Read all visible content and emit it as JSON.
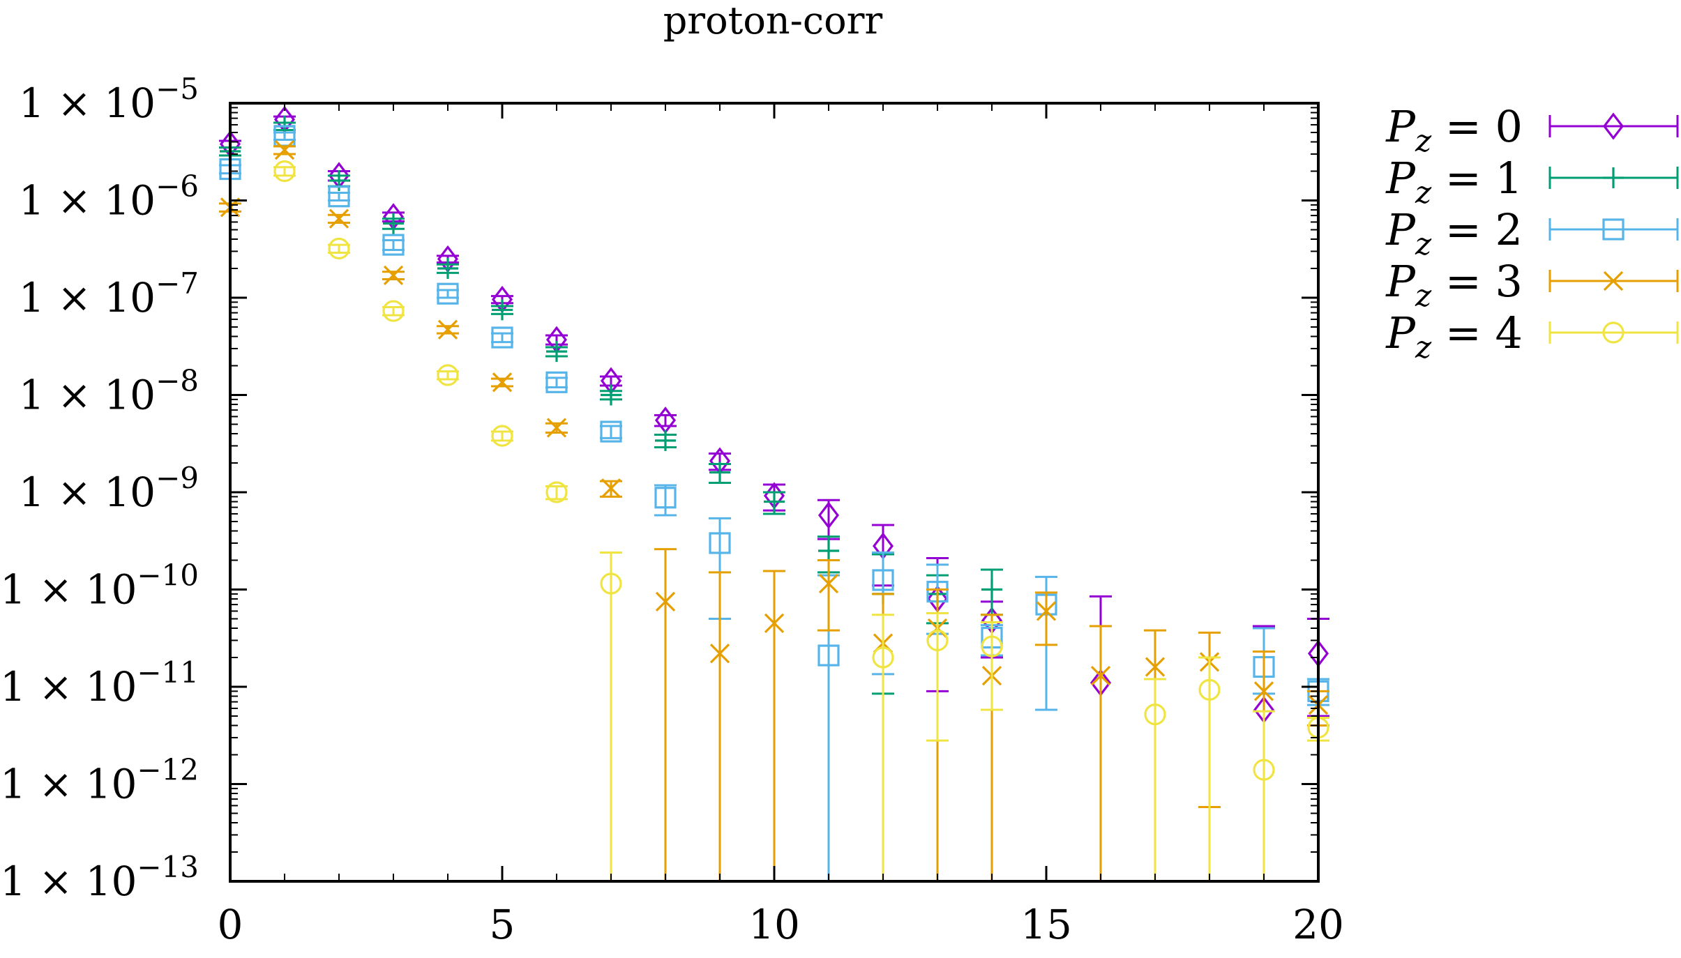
{
  "chart_data": {
    "type": "scatter",
    "title": "proton-corr",
    "xlabel": "",
    "ylabel": "",
    "xlim": [
      0,
      20
    ],
    "ylim": [
      1e-13,
      1e-05
    ],
    "yscale": "log",
    "legend_position": "outside-right",
    "x_ticks": [
      {
        "value": 0,
        "label": "0"
      },
      {
        "value": 5,
        "label": "5"
      },
      {
        "value": 10,
        "label": "10"
      },
      {
        "value": 15,
        "label": "15"
      },
      {
        "value": 20,
        "label": "20"
      }
    ],
    "y_ticks": [
      {
        "value": 1e-05,
        "label": "1 × 10",
        "exp": "−5"
      },
      {
        "value": 1e-06,
        "label": "1 × 10",
        "exp": "−6"
      },
      {
        "value": 1e-07,
        "label": "1 × 10",
        "exp": "−7"
      },
      {
        "value": 1e-08,
        "label": "1 × 10",
        "exp": "−8"
      },
      {
        "value": 1e-09,
        "label": "1 × 10",
        "exp": "−9"
      },
      {
        "value": 1e-10,
        "label": "1 × 10",
        "exp": "−10"
      },
      {
        "value": 1e-11,
        "label": "1 × 10",
        "exp": "−11"
      },
      {
        "value": 1e-12,
        "label": "1 × 10",
        "exp": "−12"
      },
      {
        "value": 1e-13,
        "label": "1 × 10",
        "exp": "−13"
      }
    ],
    "series": [
      {
        "name": "P_z = 0",
        "legend_var": "P",
        "legend_sub": "z",
        "legend_rest": " = 0",
        "color": "#9400d3",
        "marker": "diamond",
        "points": [
          {
            "x": 0,
            "y": 3.8e-06,
            "lo": 3.5e-06,
            "hi": 4.1e-06
          },
          {
            "x": 1,
            "y": 6.8e-06,
            "lo": 6.3e-06,
            "hi": 7.3e-06
          },
          {
            "x": 2,
            "y": 1.8e-06,
            "lo": 1.6e-06,
            "hi": 2e-06
          },
          {
            "x": 3,
            "y": 6.8e-07,
            "lo": 6.1e-07,
            "hi": 7.5e-07
          },
          {
            "x": 4,
            "y": 2.5e-07,
            "lo": 2.3e-07,
            "hi": 2.7e-07
          },
          {
            "x": 5,
            "y": 9.6e-08,
            "lo": 8.8e-08,
            "hi": 1.04e-07
          },
          {
            "x": 6,
            "y": 3.7e-08,
            "lo": 3.3e-08,
            "hi": 4.1e-08
          },
          {
            "x": 7,
            "y": 1.4e-08,
            "lo": 1.25e-08,
            "hi": 1.55e-08
          },
          {
            "x": 8,
            "y": 5.5e-09,
            "lo": 4.8e-09,
            "hi": 6.2e-09
          },
          {
            "x": 9,
            "y": 2.1e-09,
            "lo": 1.7e-09,
            "hi": 2.5e-09
          },
          {
            "x": 10,
            "y": 9.2e-10,
            "lo": 6.5e-10,
            "hi": 1.2e-09
          },
          {
            "x": 11,
            "y": 5.8e-10,
            "lo": 3.3e-10,
            "hi": 8.3e-10
          },
          {
            "x": 12,
            "y": 2.8e-10,
            "lo": 1.1e-10,
            "hi": 4.6e-10
          },
          {
            "x": 13,
            "y": 8e-11,
            "lo": 9e-12,
            "hi": 2.1e-10
          },
          {
            "x": 14,
            "y": 4.8e-11,
            "lo": 2e-11,
            "hi": 7.5e-11
          },
          {
            "x": 16,
            "y": 1.1e-11,
            "lo": 1e-13,
            "hi": 8.5e-11
          },
          {
            "x": 19,
            "y": 5.8e-12,
            "lo": 1e-13,
            "hi": 4.2e-11
          },
          {
            "x": 20,
            "y": 2.2e-11,
            "lo": 5e-12,
            "hi": 5e-11
          }
        ]
      },
      {
        "name": "P_z = 1",
        "legend_var": "P",
        "legend_sub": "z",
        "legend_rest": " = 1",
        "color": "#009e73",
        "marker": "plus",
        "points": [
          {
            "x": 0,
            "y": 3.2e-06,
            "lo": 2.9e-06,
            "hi": 3.5e-06
          },
          {
            "x": 1,
            "y": 5.8e-06,
            "lo": 5.3e-06,
            "hi": 6.3e-06
          },
          {
            "x": 2,
            "y": 1.6e-06,
            "lo": 1.4e-06,
            "hi": 1.8e-06
          },
          {
            "x": 3,
            "y": 5.8e-07,
            "lo": 5.1e-07,
            "hi": 6.5e-07
          },
          {
            "x": 4,
            "y": 2e-07,
            "lo": 1.8e-07,
            "hi": 2.2e-07
          },
          {
            "x": 5,
            "y": 7.5e-08,
            "lo": 6.8e-08,
            "hi": 8.2e-08
          },
          {
            "x": 6,
            "y": 2.8e-08,
            "lo": 2.5e-08,
            "hi": 3.1e-08
          },
          {
            "x": 7,
            "y": 1e-08,
            "lo": 9e-09,
            "hi": 1.1e-08
          },
          {
            "x": 8,
            "y": 3.4e-09,
            "lo": 2.9e-09,
            "hi": 3.9e-09
          },
          {
            "x": 9,
            "y": 1.6e-09,
            "lo": 1.25e-09,
            "hi": 1.95e-09
          },
          {
            "x": 10,
            "y": 8e-10,
            "lo": 6e-10,
            "hi": 1e-09
          },
          {
            "x": 11,
            "y": 2.5e-10,
            "lo": 1.5e-10,
            "hi": 3.5e-10
          },
          {
            "x": 12,
            "y": 9e-11,
            "lo": 8.5e-12,
            "hi": 2.3e-10
          },
          {
            "x": 13,
            "y": 9e-11,
            "lo": 4.5e-11,
            "hi": 1.4e-10
          },
          {
            "x": 14,
            "y": 1e-10,
            "lo": 5.5e-11,
            "hi": 1.6e-10
          }
        ]
      },
      {
        "name": "P_z = 2",
        "legend_var": "P",
        "legend_sub": "z",
        "legend_rest": " = 2",
        "color": "#56b4e9",
        "marker": "square",
        "points": [
          {
            "x": 0,
            "y": 2.1e-06,
            "lo": 1.9e-06,
            "hi": 2.3e-06
          },
          {
            "x": 1,
            "y": 4.6e-06,
            "lo": 4.2e-06,
            "hi": 5e-06
          },
          {
            "x": 2,
            "y": 1.1e-06,
            "lo": 1e-06,
            "hi": 1.2e-06
          },
          {
            "x": 3,
            "y": 3.5e-07,
            "lo": 3.1e-07,
            "hi": 3.9e-07
          },
          {
            "x": 4,
            "y": 1.1e-07,
            "lo": 1e-07,
            "hi": 1.2e-07
          },
          {
            "x": 5,
            "y": 3.9e-08,
            "lo": 3.5e-08,
            "hi": 4.3e-08
          },
          {
            "x": 6,
            "y": 1.35e-08,
            "lo": 1.2e-08,
            "hi": 1.5e-08
          },
          {
            "x": 7,
            "y": 4.2e-09,
            "lo": 3.6e-09,
            "hi": 4.8e-09
          },
          {
            "x": 8,
            "y": 8.8e-10,
            "lo": 5.8e-10,
            "hi": 1.18e-09
          },
          {
            "x": 9,
            "y": 3e-10,
            "lo": 5e-11,
            "hi": 5.4e-10
          },
          {
            "x": 11,
            "y": 2.1e-11,
            "lo": 1e-13,
            "hi": 1.4e-10
          },
          {
            "x": 12,
            "y": 1.25e-10,
            "lo": 1.35e-11,
            "hi": 2.4e-10
          },
          {
            "x": 13,
            "y": 9.5e-11,
            "lo": 3.5e-11,
            "hi": 1.8e-10
          },
          {
            "x": 14,
            "y": 3.2e-11,
            "lo": 2.1e-11,
            "hi": 4.3e-11
          },
          {
            "x": 15,
            "y": 7e-11,
            "lo": 5.8e-12,
            "hi": 1.35e-10
          },
          {
            "x": 19,
            "y": 1.6e-11,
            "lo": 8.5e-12,
            "hi": 4e-11
          },
          {
            "x": 20,
            "y": 9e-12,
            "lo": 6.5e-12,
            "hi": 1.2e-11
          }
        ]
      },
      {
        "name": "P_z = 3",
        "legend_var": "P",
        "legend_sub": "z",
        "legend_rest": " = 3",
        "color": "#e69f00",
        "marker": "cross",
        "points": [
          {
            "x": 0,
            "y": 8.5e-07,
            "lo": 7.7e-07,
            "hi": 9.3e-07
          },
          {
            "x": 1,
            "y": 3.3e-06,
            "lo": 3e-06,
            "hi": 3.6e-06
          },
          {
            "x": 2,
            "y": 6.5e-07,
            "lo": 5.9e-07,
            "hi": 7.1e-07
          },
          {
            "x": 3,
            "y": 1.7e-07,
            "lo": 1.55e-07,
            "hi": 1.85e-07
          },
          {
            "x": 4,
            "y": 4.7e-08,
            "lo": 4.3e-08,
            "hi": 5.1e-08
          },
          {
            "x": 5,
            "y": 1.35e-08,
            "lo": 1.23e-08,
            "hi": 1.47e-08
          },
          {
            "x": 6,
            "y": 4.6e-09,
            "lo": 4.1e-09,
            "hi": 5.1e-09
          },
          {
            "x": 7,
            "y": 1.1e-09,
            "lo": 9e-10,
            "hi": 1.3e-09
          },
          {
            "x": 8,
            "y": 7.5e-11,
            "lo": 1e-13,
            "hi": 2.6e-10
          },
          {
            "x": 9,
            "y": 2.2e-11,
            "lo": 1e-13,
            "hi": 1.5e-10
          },
          {
            "x": 10,
            "y": 4.5e-11,
            "lo": 1e-13,
            "hi": 1.55e-10
          },
          {
            "x": 11,
            "y": 1.15e-10,
            "lo": 3.8e-11,
            "hi": 2e-10
          },
          {
            "x": 12,
            "y": 2.8e-11,
            "lo": 1e-13,
            "hi": 9e-11
          },
          {
            "x": 13,
            "y": 4e-11,
            "lo": 1e-13,
            "hi": 1e-10
          },
          {
            "x": 14,
            "y": 1.3e-11,
            "lo": 1e-13,
            "hi": 5.5e-11
          },
          {
            "x": 15,
            "y": 6e-11,
            "lo": 2.7e-11,
            "hi": 9.3e-11
          },
          {
            "x": 16,
            "y": 1.3e-11,
            "lo": 1e-13,
            "hi": 4.2e-11
          },
          {
            "x": 17,
            "y": 1.6e-11,
            "lo": 1e-13,
            "hi": 3.8e-11
          },
          {
            "x": 18,
            "y": 1.8e-11,
            "lo": 5.8e-13,
            "hi": 3.6e-11
          },
          {
            "x": 19,
            "y": 9e-12,
            "lo": 1e-13,
            "hi": 2.3e-11
          },
          {
            "x": 20,
            "y": 6.5e-12,
            "lo": 4e-12,
            "hi": 9e-12
          }
        ]
      },
      {
        "name": "P_z = 4",
        "legend_var": "P",
        "legend_sub": "z",
        "legend_rest": " = 4",
        "color": "#f0e442",
        "marker": "circle",
        "points": [
          {
            "x": 1,
            "y": 2e-06,
            "lo": 1.8e-06,
            "hi": 2.2e-06
          },
          {
            "x": 2,
            "y": 3.2e-07,
            "lo": 2.9e-07,
            "hi": 3.5e-07
          },
          {
            "x": 3,
            "y": 7.3e-08,
            "lo": 6.6e-08,
            "hi": 8e-08
          },
          {
            "x": 4,
            "y": 1.6e-08,
            "lo": 1.45e-08,
            "hi": 1.75e-08
          },
          {
            "x": 5,
            "y": 3.8e-09,
            "lo": 3.4e-09,
            "hi": 4.2e-09
          },
          {
            "x": 6,
            "y": 1e-09,
            "lo": 8.5e-10,
            "hi": 1.15e-09
          },
          {
            "x": 7,
            "y": 1.15e-10,
            "lo": 1e-13,
            "hi": 2.4e-10
          },
          {
            "x": 12,
            "y": 2e-11,
            "lo": 1e-13,
            "hi": 5.5e-11
          },
          {
            "x": 13,
            "y": 3e-11,
            "lo": 2.8e-12,
            "hi": 5.7e-11
          },
          {
            "x": 14,
            "y": 2.6e-11,
            "lo": 5.8e-12,
            "hi": 4.6e-11
          },
          {
            "x": 17,
            "y": 5.2e-12,
            "lo": 1e-13,
            "hi": 1.2e-11
          },
          {
            "x": 18,
            "y": 9.3e-12,
            "lo": 1e-13,
            "hi": 2e-11
          },
          {
            "x": 19,
            "y": 1.4e-12,
            "lo": 1e-13,
            "hi": 5.6e-12
          },
          {
            "x": 20,
            "y": 3.8e-12,
            "lo": 2.8e-12,
            "hi": 4.8e-12
          }
        ]
      }
    ]
  }
}
